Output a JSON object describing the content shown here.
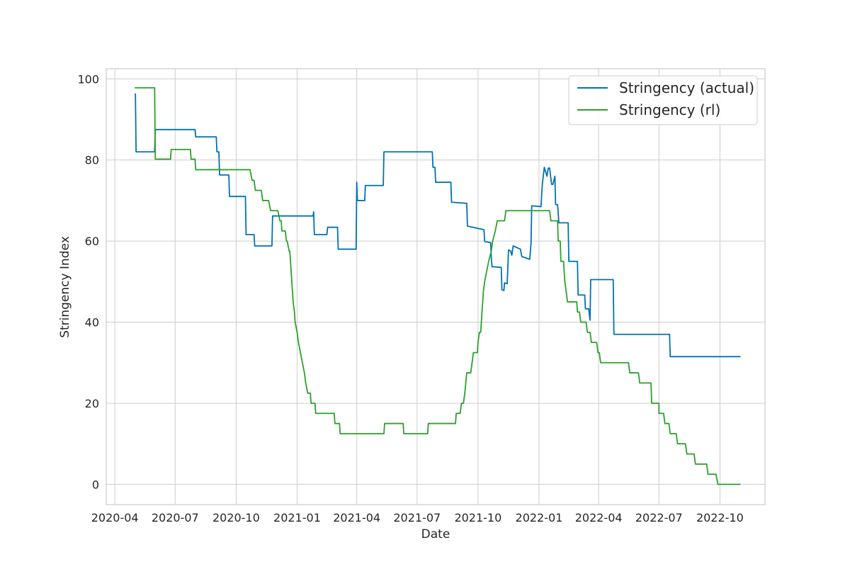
{
  "chart_data": {
    "type": "line",
    "title": "",
    "xlabel": "Date",
    "ylabel": "Stringency Index",
    "x_ticks": [
      "2020-04",
      "2020-07",
      "2020-10",
      "2021-01",
      "2021-04",
      "2021-07",
      "2021-10",
      "2022-01",
      "2022-04",
      "2022-07",
      "2022-10"
    ],
    "xlim": [
      "2020-03-19",
      "2022-12-08"
    ],
    "y_ticks": [
      "0",
      "20",
      "40",
      "60",
      "80",
      "100"
    ],
    "ylim": [
      -5,
      102.5
    ],
    "grid": true,
    "legend_position": "top-right",
    "series": [
      {
        "name": "Stringency (actual)",
        "color": "#0072b2",
        "points": [
          [
            "2020-05-01",
            96.3
          ],
          [
            "2020-05-02",
            96.3
          ],
          [
            "2020-05-03",
            82.0
          ],
          [
            "2020-05-31",
            82.0
          ],
          [
            "2020-06-01",
            87.5
          ],
          [
            "2020-07-31",
            87.5
          ],
          [
            "2020-08-01",
            85.7
          ],
          [
            "2020-09-01",
            85.7
          ],
          [
            "2020-09-02",
            82.0
          ],
          [
            "2020-09-05",
            82.0
          ],
          [
            "2020-09-06",
            76.3
          ],
          [
            "2020-09-20",
            76.3
          ],
          [
            "2020-09-21",
            71.0
          ],
          [
            "2020-10-15",
            71.0
          ],
          [
            "2020-10-16",
            61.6
          ],
          [
            "2020-10-28",
            61.6
          ],
          [
            "2020-10-29",
            58.8
          ],
          [
            "2020-11-24",
            58.8
          ],
          [
            "2020-11-25",
            66.2
          ],
          [
            "2021-01-25",
            66.2
          ],
          [
            "2021-01-26",
            67.2
          ],
          [
            "2021-01-27",
            61.6
          ],
          [
            "2021-02-15",
            61.6
          ],
          [
            "2021-02-16",
            63.4
          ],
          [
            "2021-03-03",
            63.4
          ],
          [
            "2021-03-04",
            58.0
          ],
          [
            "2021-03-31",
            58.0
          ],
          [
            "2021-04-01",
            74.5
          ],
          [
            "2021-04-02",
            70.0
          ],
          [
            "2021-04-13",
            70.0
          ],
          [
            "2021-04-14",
            73.7
          ],
          [
            "2021-05-11",
            73.7
          ],
          [
            "2021-05-12",
            82.0
          ],
          [
            "2021-07-24",
            82.0
          ],
          [
            "2021-07-25",
            78.2
          ],
          [
            "2021-07-28",
            78.2
          ],
          [
            "2021-07-29",
            74.5
          ],
          [
            "2021-08-21",
            74.5
          ],
          [
            "2021-08-22",
            69.6
          ],
          [
            "2021-09-14",
            69.3
          ],
          [
            "2021-09-15",
            63.7
          ],
          [
            "2021-10-10",
            62.8
          ],
          [
            "2021-10-11",
            59.9
          ],
          [
            "2021-10-20",
            59.6
          ],
          [
            "2021-10-21",
            56.0
          ],
          [
            "2021-10-22",
            53.7
          ],
          [
            "2021-11-05",
            53.5
          ],
          [
            "2021-11-06",
            48.0
          ],
          [
            "2021-11-09",
            47.8
          ],
          [
            "2021-11-10",
            49.7
          ],
          [
            "2021-11-14",
            49.5
          ],
          [
            "2021-11-16",
            57.8
          ],
          [
            "2021-11-19",
            57.6
          ],
          [
            "2021-11-21",
            56.5
          ],
          [
            "2021-11-23",
            58.8
          ],
          [
            "2021-12-04",
            58.0
          ],
          [
            "2021-12-06",
            56.2
          ],
          [
            "2021-12-18",
            55.5
          ],
          [
            "2021-12-20",
            59.5
          ],
          [
            "2021-12-21",
            68.7
          ],
          [
            "2022-01-04",
            68.5
          ],
          [
            "2022-01-06",
            74.0
          ],
          [
            "2022-01-09",
            78.2
          ],
          [
            "2022-01-13",
            76.0
          ],
          [
            "2022-01-15",
            78.0
          ],
          [
            "2022-01-17",
            78.0
          ],
          [
            "2022-01-20",
            74.0
          ],
          [
            "2022-01-22",
            74.0
          ],
          [
            "2022-01-25",
            76.0
          ],
          [
            "2022-01-26",
            69.0
          ],
          [
            "2022-01-29",
            69.0
          ],
          [
            "2022-01-31",
            64.5
          ],
          [
            "2022-02-14",
            64.5
          ],
          [
            "2022-02-15",
            55.0
          ],
          [
            "2022-02-28",
            55.0
          ],
          [
            "2022-03-01",
            46.7
          ],
          [
            "2022-03-11",
            46.7
          ],
          [
            "2022-03-12",
            43.3
          ],
          [
            "2022-03-17",
            43.3
          ],
          [
            "2022-03-19",
            40.5
          ],
          [
            "2022-03-20",
            50.5
          ],
          [
            "2022-04-23",
            50.5
          ],
          [
            "2022-04-24",
            37.0
          ],
          [
            "2022-07-17",
            37.0
          ],
          [
            "2022-07-18",
            31.5
          ],
          [
            "2022-11-01",
            31.5
          ]
        ]
      },
      {
        "name": "Stringency (rl)",
        "color": "#2ca02c",
        "points": [
          [
            "2020-05-01",
            97.8
          ],
          [
            "2020-05-31",
            97.8
          ],
          [
            "2020-06-01",
            80.2
          ],
          [
            "2020-06-24",
            80.2
          ],
          [
            "2020-06-25",
            82.6
          ],
          [
            "2020-07-24",
            82.6
          ],
          [
            "2020-07-25",
            80.2
          ],
          [
            "2020-07-31",
            80.2
          ],
          [
            "2020-08-01",
            77.6
          ],
          [
            "2020-10-22",
            77.6
          ],
          [
            "2020-10-25",
            75.0
          ],
          [
            "2020-10-28",
            75.0
          ],
          [
            "2020-10-30",
            72.5
          ],
          [
            "2020-11-08",
            72.5
          ],
          [
            "2020-11-10",
            70.0
          ],
          [
            "2020-11-19",
            70.0
          ],
          [
            "2020-11-22",
            67.5
          ],
          [
            "2020-12-03",
            67.5
          ],
          [
            "2020-12-06",
            65.0
          ],
          [
            "2020-12-08",
            65.0
          ],
          [
            "2020-12-09",
            62.5
          ],
          [
            "2020-12-14",
            62.5
          ],
          [
            "2020-12-16",
            60.0
          ],
          [
            "2020-12-17",
            60.0
          ],
          [
            "2020-12-20",
            57.5
          ],
          [
            "2020-12-21",
            57.5
          ],
          [
            "2020-12-22",
            55.0
          ],
          [
            "2020-12-24",
            50.0
          ],
          [
            "2020-12-26",
            45.0
          ],
          [
            "2020-12-28",
            42.5
          ],
          [
            "2020-12-29",
            40.0
          ],
          [
            "2021-01-01",
            37.5
          ],
          [
            "2021-01-03",
            35.0
          ],
          [
            "2021-01-06",
            32.5
          ],
          [
            "2021-01-09",
            30.0
          ],
          [
            "2021-01-12",
            27.5
          ],
          [
            "2021-01-14",
            25.0
          ],
          [
            "2021-01-17",
            22.5
          ],
          [
            "2021-01-21",
            22.5
          ],
          [
            "2021-01-22",
            20.0
          ],
          [
            "2021-01-28",
            20.0
          ],
          [
            "2021-01-29",
            17.5
          ],
          [
            "2021-02-26",
            17.5
          ],
          [
            "2021-02-27",
            15.0
          ],
          [
            "2021-03-06",
            15.0
          ],
          [
            "2021-03-07",
            12.5
          ],
          [
            "2021-05-12",
            12.5
          ],
          [
            "2021-05-13",
            15.0
          ],
          [
            "2021-06-10",
            15.0
          ],
          [
            "2021-06-11",
            12.5
          ],
          [
            "2021-07-17",
            12.5
          ],
          [
            "2021-07-18",
            15.0
          ],
          [
            "2021-08-28",
            15.0
          ],
          [
            "2021-08-29",
            17.5
          ],
          [
            "2021-09-04",
            17.5
          ],
          [
            "2021-09-06",
            20.0
          ],
          [
            "2021-09-09",
            20.0
          ],
          [
            "2021-09-11",
            22.5
          ],
          [
            "2021-09-14",
            27.5
          ],
          [
            "2021-09-20",
            27.5
          ],
          [
            "2021-09-22",
            30.0
          ],
          [
            "2021-09-24",
            32.5
          ],
          [
            "2021-09-30",
            32.5
          ],
          [
            "2021-10-01",
            35.0
          ],
          [
            "2021-10-03",
            37.5
          ],
          [
            "2021-10-05",
            37.5
          ],
          [
            "2021-10-07",
            42.5
          ],
          [
            "2021-10-09",
            47.5
          ],
          [
            "2021-10-11",
            50.0
          ],
          [
            "2021-10-14",
            52.5
          ],
          [
            "2021-10-17",
            55.0
          ],
          [
            "2021-10-21",
            57.5
          ],
          [
            "2021-10-23",
            60.0
          ],
          [
            "2021-10-27",
            62.5
          ],
          [
            "2021-10-30",
            65.0
          ],
          [
            "2021-11-10",
            65.0
          ],
          [
            "2021-11-12",
            67.5
          ],
          [
            "2022-01-17",
            67.5
          ],
          [
            "2022-01-19",
            65.0
          ],
          [
            "2022-01-29",
            65.0
          ],
          [
            "2022-01-30",
            60.0
          ],
          [
            "2022-02-02",
            60.0
          ],
          [
            "2022-02-03",
            55.0
          ],
          [
            "2022-02-07",
            55.0
          ],
          [
            "2022-02-09",
            50.0
          ],
          [
            "2022-02-13",
            45.0
          ],
          [
            "2022-02-27",
            45.0
          ],
          [
            "2022-02-28",
            42.5
          ],
          [
            "2022-03-03",
            42.5
          ],
          [
            "2022-03-05",
            40.0
          ],
          [
            "2022-03-13",
            40.0
          ],
          [
            "2022-03-15",
            37.5
          ],
          [
            "2022-03-19",
            37.5
          ],
          [
            "2022-03-21",
            35.0
          ],
          [
            "2022-03-29",
            35.0
          ],
          [
            "2022-03-31",
            32.5
          ],
          [
            "2022-04-02",
            32.5
          ],
          [
            "2022-04-04",
            30.0
          ],
          [
            "2022-05-16",
            30.0
          ],
          [
            "2022-05-18",
            27.5
          ],
          [
            "2022-05-31",
            27.5
          ],
          [
            "2022-06-02",
            25.0
          ],
          [
            "2022-06-19",
            25.0
          ],
          [
            "2022-06-20",
            20.0
          ],
          [
            "2022-07-01",
            20.0
          ],
          [
            "2022-07-01",
            17.5
          ],
          [
            "2022-07-08",
            17.5
          ],
          [
            "2022-07-10",
            15.0
          ],
          [
            "2022-07-16",
            15.0
          ],
          [
            "2022-07-18",
            12.5
          ],
          [
            "2022-07-27",
            12.5
          ],
          [
            "2022-07-29",
            10.0
          ],
          [
            "2022-08-10",
            10.0
          ],
          [
            "2022-08-12",
            7.5
          ],
          [
            "2022-08-23",
            7.5
          ],
          [
            "2022-08-25",
            5.0
          ],
          [
            "2022-09-11",
            5.0
          ],
          [
            "2022-09-13",
            2.5
          ],
          [
            "2022-09-25",
            2.5
          ],
          [
            "2022-09-28",
            0.0
          ],
          [
            "2022-11-01",
            0.0
          ]
        ]
      }
    ]
  }
}
